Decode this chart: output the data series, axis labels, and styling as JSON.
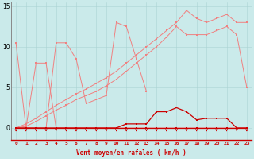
{
  "x": [
    0,
    1,
    2,
    3,
    4,
    5,
    6,
    7,
    8,
    9,
    10,
    11,
    12,
    13,
    14,
    15,
    16,
    17,
    18,
    19,
    20,
    21,
    22,
    23
  ],
  "series_spike": [
    10.5,
    0.0,
    0.0,
    0.0,
    10.5,
    10.5,
    8.5,
    3.0,
    3.5,
    4.0,
    13.0,
    12.5,
    8.5,
    4.5,
    null,
    null,
    null,
    null,
    null,
    null,
    null,
    null,
    null,
    null
  ],
  "series_arch": [
    0.0,
    0.0,
    8.0,
    8.0,
    0.0,
    0.0,
    0.0,
    0.0,
    0.0,
    0.0,
    0.0,
    0.0,
    0.0,
    0.0,
    0.0,
    0.0,
    0.0,
    0.0,
    0.0,
    0.0,
    0.0,
    0.0,
    0.0,
    0.0
  ],
  "series_trend_hi": [
    0.0,
    0.5,
    1.2,
    2.0,
    2.8,
    3.5,
    4.2,
    4.8,
    5.5,
    6.2,
    7.0,
    8.0,
    9.0,
    10.0,
    11.0,
    12.0,
    13.0,
    14.5,
    13.5,
    13.0,
    13.5,
    14.0,
    13.0,
    13.0
  ],
  "series_trend_lo": [
    0.0,
    0.2,
    0.8,
    1.5,
    2.2,
    2.8,
    3.5,
    4.0,
    4.5,
    5.2,
    6.0,
    7.0,
    8.0,
    9.0,
    10.0,
    11.2,
    12.5,
    11.5,
    11.5,
    11.5,
    12.0,
    12.5,
    11.5,
    5.0
  ],
  "series_dark_bumps": [
    0.0,
    0.0,
    0.0,
    0.0,
    0.0,
    0.0,
    0.0,
    0.0,
    0.0,
    0.0,
    0.0,
    0.5,
    0.5,
    0.5,
    2.0,
    2.0,
    2.5,
    2.0,
    1.0,
    1.2,
    1.2,
    1.2,
    0.0,
    0.0
  ],
  "series_dark_zero": [
    0.0,
    0.0,
    0.0,
    0.0,
    0.0,
    0.0,
    0.0,
    0.0,
    0.0,
    0.0,
    0.0,
    0.0,
    0.0,
    0.0,
    0.0,
    0.0,
    0.0,
    0.0,
    0.0,
    0.0,
    0.0,
    0.0,
    0.0,
    0.0
  ],
  "bg_color": "#caeaea",
  "grid_color": "#aad4d4",
  "color_light": "#f08080",
  "color_dark": "#cc0000",
  "xlabel": "Vent moyen/en rafales ( km/h )",
  "ytick_labels": [
    "0",
    "5",
    "10",
    "15"
  ],
  "ytick_vals": [
    0,
    5,
    10,
    15
  ],
  "figw": 3.2,
  "figh": 2.0
}
